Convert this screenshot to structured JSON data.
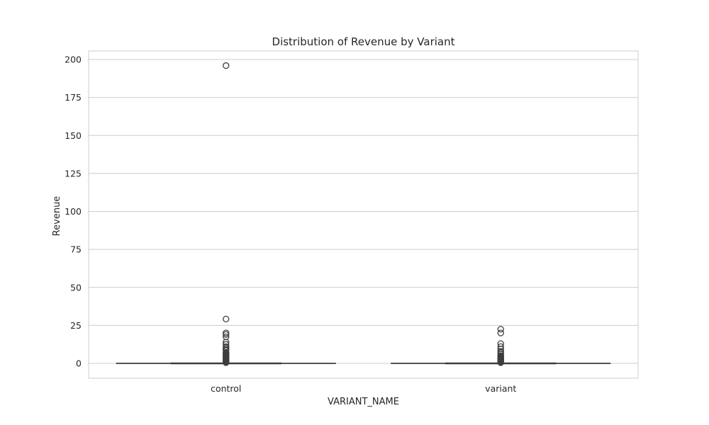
{
  "chart_data": {
    "type": "box",
    "title": "Distribution of Revenue by Variant",
    "xlabel": "VARIANT_NAME",
    "ylabel": "Revenue",
    "categories": [
      "control",
      "variant"
    ],
    "ylim": [
      -10,
      205
    ],
    "yticks": [
      0,
      25,
      50,
      75,
      100,
      125,
      150,
      175,
      200
    ],
    "grid": true,
    "boxes": [
      {
        "name": "control",
        "whisker_low": 0,
        "q1": 0,
        "median": 0,
        "q3": 0,
        "whisker_high": 0,
        "outliers": [
          196,
          29.2,
          20,
          19,
          17.5,
          14,
          12.5,
          11,
          10,
          9,
          8.5,
          7,
          6.5,
          6,
          5.5,
          5,
          4.5,
          4,
          3.5,
          3,
          2.5,
          2,
          1.5,
          1,
          0.5
        ]
      },
      {
        "name": "variant",
        "whisker_low": 0,
        "q1": 0,
        "median": 0,
        "q3": 0,
        "whisker_high": 0,
        "outliers": [
          22.5,
          20,
          13,
          11,
          9.5,
          8,
          7,
          6,
          5,
          4.5,
          4,
          3.5,
          3,
          2.5,
          2,
          1.5,
          1,
          0.5
        ]
      }
    ],
    "colors": {
      "edge": "#3d3d3d",
      "grid": "#cccccc",
      "frame": "#cccccc",
      "text": "#262626"
    }
  }
}
